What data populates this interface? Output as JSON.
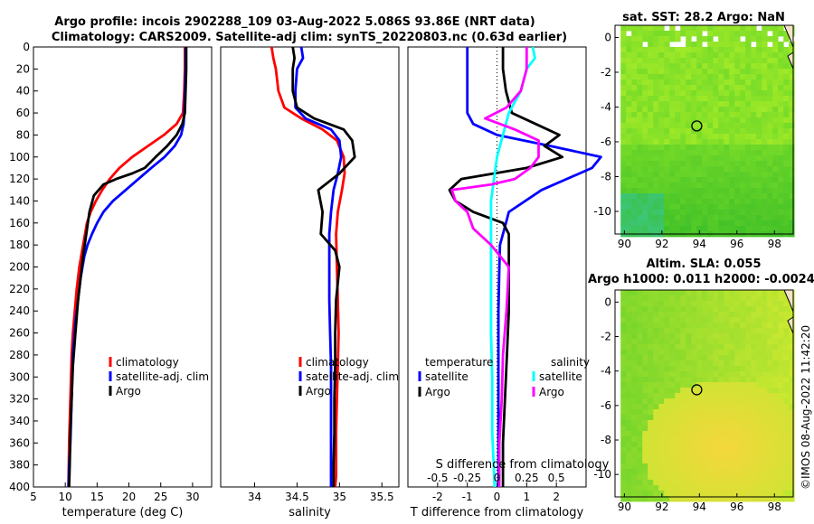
{
  "title": {
    "line1": "Argo profile: incois 2902288_109 03-Aug-2022 5.086S 93.86E (NRT data)",
    "line2": "Climatology: CARS2009. Satellite-adj clim: synTS_20220803.nc (0.63d earlier)"
  },
  "copyright": "©IMOS 08-Aug-2022 11:42:20",
  "colors": {
    "climatology": "#ff0000",
    "satellite": "#0000ff",
    "argo": "#000000",
    "sat_salinity": "#00ffff",
    "argo_salinity": "#ff00ff"
  },
  "chart_data": [
    {
      "id": "temperature",
      "type": "line",
      "xlabel": "temperature (deg C)",
      "ylabel": "",
      "xlim": [
        5,
        33
      ],
      "ylim": [
        400,
        0
      ],
      "xticks": [
        5,
        10,
        15,
        20,
        25,
        30
      ],
      "yticks": [
        0,
        20,
        40,
        60,
        80,
        100,
        120,
        140,
        160,
        180,
        200,
        220,
        240,
        260,
        280,
        300,
        320,
        340,
        360,
        380,
        400
      ],
      "legend": [
        "climatology",
        "satellite-adj. clim",
        "Argo"
      ],
      "series": [
        {
          "name": "climatology",
          "color": "#ff0000",
          "x": [
            28.8,
            28.8,
            28.7,
            28.5,
            27.5,
            25.5,
            23.0,
            20.5,
            18.5,
            17.0,
            15.8,
            14.8,
            14.0,
            13.4,
            12.8,
            12.2,
            11.8,
            11.5,
            11.2,
            11.0,
            10.8,
            10.6,
            10.5
          ],
          "y": [
            0,
            20,
            40,
            60,
            70,
            80,
            90,
            100,
            110,
            120,
            130,
            140,
            150,
            160,
            180,
            200,
            220,
            240,
            260,
            280,
            320,
            360,
            400
          ]
        },
        {
          "name": "satellite-adj. clim",
          "color": "#0000ff",
          "x": [
            28.9,
            28.9,
            28.8,
            28.7,
            28.6,
            28.2,
            27.2,
            25.6,
            23.5,
            21.5,
            19.5,
            17.5,
            16.0,
            15.0,
            14.2,
            13.5,
            13.0,
            12.4,
            12.0,
            11.6,
            11.2,
            11.0,
            10.8,
            10.6,
            10.5
          ],
          "y": [
            0,
            20,
            40,
            60,
            70,
            80,
            90,
            100,
            110,
            120,
            130,
            140,
            150,
            160,
            170,
            180,
            190,
            210,
            230,
            250,
            280,
            320,
            360,
            380,
            400
          ]
        },
        {
          "name": "Argo",
          "color": "#000000",
          "x": [
            29.0,
            29.0,
            28.9,
            28.8,
            28.4,
            27.5,
            26.0,
            24.2,
            22.5,
            20.5,
            18.0,
            16.0,
            14.5,
            13.8,
            13.3,
            12.8,
            12.4,
            12.0,
            11.6,
            11.2,
            11.0,
            10.8,
            10.7,
            10.6
          ],
          "y": [
            0,
            20,
            40,
            60,
            70,
            80,
            90,
            100,
            110,
            115,
            120,
            125,
            135,
            150,
            170,
            190,
            210,
            230,
            260,
            290,
            320,
            350,
            380,
            400
          ]
        }
      ]
    },
    {
      "id": "salinity",
      "type": "line",
      "xlabel": "salinity",
      "ylabel": "",
      "xlim": [
        33.6,
        35.7
      ],
      "ylim": [
        400,
        0
      ],
      "xticks": [
        34,
        34.5,
        35,
        35.5
      ],
      "legend": [
        "climatology",
        "satellite-adj. clim",
        "Argo"
      ],
      "series": [
        {
          "name": "climatology",
          "color": "#ff0000",
          "x": [
            34.2,
            34.22,
            34.25,
            34.28,
            34.35,
            34.55,
            34.8,
            34.97,
            35.05,
            35.06,
            35.03,
            34.98,
            34.96,
            34.97,
            34.98,
            34.99,
            34.98,
            34.97,
            34.96,
            34.96,
            34.96,
            34.95
          ],
          "y": [
            0,
            10,
            20,
            40,
            55,
            65,
            75,
            85,
            100,
            115,
            130,
            150,
            170,
            200,
            230,
            260,
            290,
            320,
            350,
            370,
            390,
            400
          ]
        },
        {
          "name": "satellite-adj. clim",
          "color": "#0000ff",
          "x": [
            34.55,
            34.57,
            34.5,
            34.48,
            34.48,
            34.6,
            34.9,
            35.0,
            35.02,
            34.98,
            34.93,
            34.9,
            34.88,
            34.88,
            34.88,
            34.89,
            34.9,
            34.9,
            34.9,
            34.9,
            34.9,
            34.9
          ],
          "y": [
            0,
            10,
            20,
            40,
            55,
            65,
            75,
            85,
            100,
            115,
            130,
            150,
            170,
            200,
            230,
            260,
            290,
            320,
            350,
            370,
            390,
            400
          ]
        },
        {
          "name": "Argo",
          "color": "#000000",
          "x": [
            34.45,
            34.47,
            34.45,
            34.45,
            34.5,
            34.7,
            35.05,
            35.15,
            35.18,
            35.0,
            34.75,
            34.8,
            34.78,
            34.95,
            35.0,
            34.96,
            34.95,
            34.95,
            34.94,
            34.94,
            34.93,
            34.93
          ],
          "y": [
            0,
            10,
            20,
            40,
            55,
            65,
            75,
            85,
            100,
            115,
            130,
            150,
            170,
            185,
            200,
            230,
            260,
            290,
            320,
            350,
            380,
            400
          ]
        }
      ]
    },
    {
      "id": "difference",
      "type": "line",
      "xlabel": "T difference from climatology",
      "top_xlabel": "S difference from climatology",
      "xlim": [
        -3,
        3
      ],
      "s_xlim": [
        -0.75,
        0.75
      ],
      "ylim": [
        400,
        0
      ],
      "xticks": [
        -2,
        -1,
        0,
        1,
        2
      ],
      "s_xticks": [
        -0.5,
        -0.25,
        0,
        0.25,
        0.5
      ],
      "s_xtick_labels": [
        "-0.5",
        "-0.25",
        "0",
        "0.25",
        "0.5"
      ],
      "legend": {
        "temperature_title": "temperature",
        "salinity_title": "salinity",
        "entries": [
          "satellite",
          "Argo",
          "satellite",
          "Argo"
        ]
      },
      "series": [
        {
          "name": "temperature satellite",
          "axis": "T",
          "color": "#0000ff",
          "x": [
            -1.0,
            -1.0,
            -1.0,
            -1.0,
            -0.8,
            0.0,
            1.8,
            3.5,
            3.2,
            1.5,
            0.4,
            0.3,
            0.2,
            0.1,
            0.08,
            0.05,
            0.05,
            0.05,
            0.05,
            0.05
          ],
          "y": [
            0,
            20,
            40,
            60,
            70,
            80,
            90,
            100,
            110,
            130,
            150,
            160,
            170,
            180,
            200,
            240,
            280,
            320,
            360,
            400
          ]
        },
        {
          "name": "temperature Argo",
          "axis": "T",
          "color": "#000000",
          "x": [
            0.2,
            0.2,
            0.3,
            0.5,
            1.3,
            2.1,
            1.6,
            2.2,
            1.0,
            -1.2,
            -1.6,
            -1.4,
            -0.8,
            0.2,
            0.4,
            0.4,
            0.4,
            0.4,
            0.3,
            0.2,
            0.2
          ],
          "y": [
            0,
            20,
            40,
            60,
            70,
            80,
            90,
            100,
            110,
            120,
            130,
            140,
            150,
            160,
            170,
            180,
            200,
            240,
            300,
            360,
            400
          ]
        },
        {
          "name": "salinity satellite",
          "axis": "S",
          "color": "#00ffff",
          "x": [
            0.3,
            0.32,
            0.25,
            0.2,
            0.1,
            0.0,
            -0.05,
            -0.05,
            -0.05,
            -0.05,
            -0.04,
            -0.04,
            -0.02
          ],
          "y": [
            0,
            10,
            20,
            40,
            60,
            100,
            140,
            180,
            220,
            260,
            300,
            350,
            400
          ]
        },
        {
          "name": "salinity Argo",
          "axis": "S",
          "color": "#ff00ff",
          "x": [
            0.25,
            0.25,
            0.25,
            0.2,
            0.08,
            -0.1,
            0.15,
            0.35,
            0.35,
            0.28,
            0.15,
            -0.05,
            -0.38,
            -0.35,
            -0.25,
            -0.2,
            -0.05,
            0.1,
            0.08,
            0.05,
            0.04,
            0.02,
            0.02
          ],
          "y": [
            0,
            10,
            20,
            40,
            55,
            65,
            75,
            85,
            100,
            110,
            120,
            125,
            130,
            140,
            150,
            165,
            180,
            200,
            240,
            280,
            320,
            360,
            400
          ]
        }
      ]
    },
    {
      "id": "sst_map",
      "type": "heatmap",
      "title": "sat. SST: 28.2 Argo: NaN",
      "xlim": [
        89.5,
        99
      ],
      "ylim": [
        -11.3,
        0.7
      ],
      "xticks": [
        90,
        92,
        94,
        96,
        98
      ],
      "yticks": [
        0,
        -2,
        -4,
        -6,
        -8,
        -10
      ],
      "marker": {
        "lon": 93.86,
        "lat": -5.086
      }
    },
    {
      "id": "sla_map",
      "type": "heatmap",
      "title": "Altim. SLA: 0.055",
      "subtitle": "Argo h1000: 0.011 h2000: -0.0024",
      "xlim": [
        89.5,
        99
      ],
      "ylim": [
        -11.3,
        0.7
      ],
      "xticks": [
        90,
        92,
        94,
        96,
        98
      ],
      "yticks": [
        0,
        -2,
        -4,
        -6,
        -8,
        -10
      ],
      "marker": {
        "lon": 93.86,
        "lat": -5.086
      }
    }
  ]
}
